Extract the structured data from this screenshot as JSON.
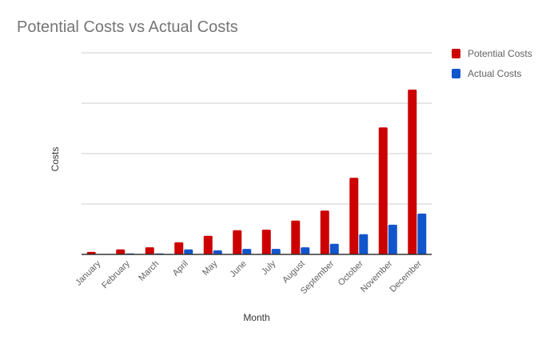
{
  "chart_data": {
    "type": "bar",
    "title": "Potential Costs vs Actual Costs",
    "xlabel": "Month",
    "ylabel": "Costs",
    "categories": [
      "January",
      "February",
      "March",
      "April",
      "May",
      "June",
      "July",
      "August",
      "September",
      "October",
      "November",
      "December"
    ],
    "series": [
      {
        "name": "Potential Costs",
        "color": "#cc0000",
        "values": [
          5,
          10,
          14,
          24,
          37,
          48,
          49,
          67,
          87,
          152,
          252,
          327
        ]
      },
      {
        "name": "Actual Costs",
        "color": "#1155cc",
        "values": [
          0,
          2,
          2,
          10,
          8,
          11,
          11,
          14,
          21,
          40,
          59,
          81
        ]
      }
    ],
    "ylim": [
      0,
      400
    ],
    "ygrid_step": 100,
    "grid": true,
    "y_tick_labels_shown": false,
    "legend_position": "right"
  }
}
